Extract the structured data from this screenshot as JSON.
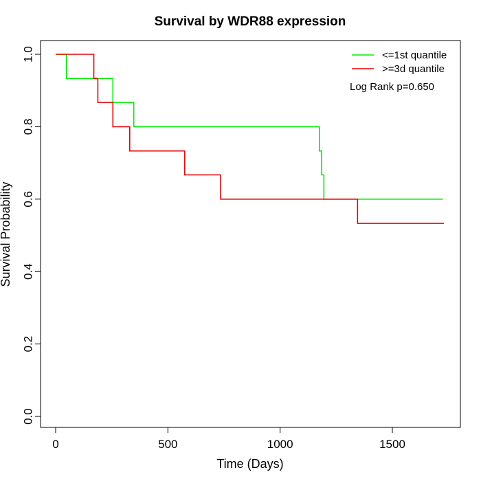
{
  "chart_data": {
    "type": "line",
    "title": "Survival by WDR88 expression",
    "xlabel": "Time (Days)",
    "ylabel": "Survival Probability",
    "xlim": [
      0,
      1730
    ],
    "ylim": [
      0,
      1
    ],
    "x_ticks": [
      0,
      500,
      1000,
      1500
    ],
    "y_ticks": [
      0.0,
      0.2,
      0.4,
      0.6,
      0.8,
      1.0
    ],
    "x_tick_labels": [
      "0",
      "500",
      "1000",
      "1500"
    ],
    "y_tick_labels": [
      "0.0",
      "0.2",
      "0.4",
      "0.6",
      "0.8",
      "1.0"
    ],
    "grid": false,
    "legend_position": "top-right",
    "annotation": "Log Rank p=0.650",
    "series": [
      {
        "name": "<=1st quantile",
        "color": "#00ee00",
        "step": true,
        "points": [
          [
            0,
            1.0
          ],
          [
            48,
            0.933
          ],
          [
            255,
            0.867
          ],
          [
            348,
            0.8
          ],
          [
            1175,
            0.733
          ],
          [
            1185,
            0.667
          ],
          [
            1195,
            0.6
          ],
          [
            1725,
            0.6
          ]
        ]
      },
      {
        "name": ">=3d quantile",
        "color": "#ee0000",
        "step": true,
        "points": [
          [
            0,
            1.0
          ],
          [
            170,
            0.933
          ],
          [
            188,
            0.867
          ],
          [
            255,
            0.8
          ],
          [
            330,
            0.733
          ],
          [
            575,
            0.667
          ],
          [
            735,
            0.6
          ],
          [
            1345,
            0.533
          ],
          [
            1730,
            0.533
          ]
        ]
      }
    ]
  }
}
